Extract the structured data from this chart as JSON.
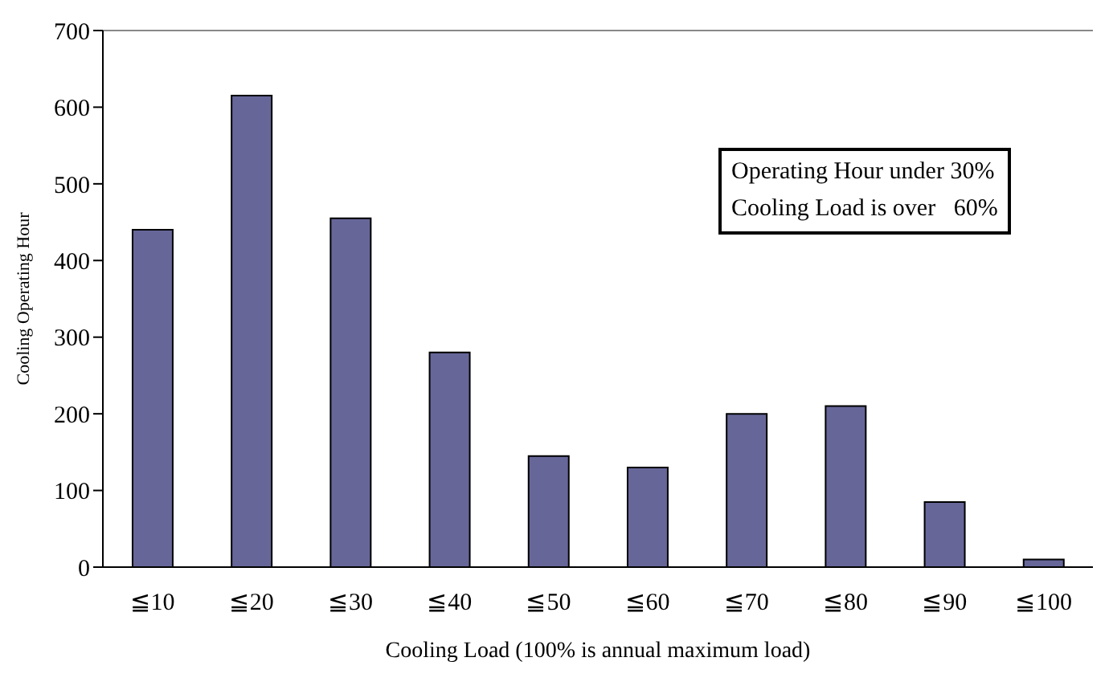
{
  "chart_data": {
    "type": "bar",
    "xlabel": "Cooling Load (100% is annual maximum load)",
    "ylabel": "Cooling Operating Hour",
    "categories": [
      "≦10",
      "≦20",
      "≦30",
      "≦40",
      "≦50",
      "≦60",
      "≦70",
      "≦80",
      "≦90",
      "≦100"
    ],
    "values": [
      440,
      615,
      455,
      280,
      145,
      130,
      200,
      210,
      85,
      10
    ],
    "color": "#666699",
    "ylim": [
      0,
      700
    ],
    "yticks": [
      0,
      100,
      200,
      300,
      400,
      500,
      600,
      700
    ],
    "annotations": [
      "Operating Hour under 30%\nCooling Load is over   60%"
    ]
  }
}
